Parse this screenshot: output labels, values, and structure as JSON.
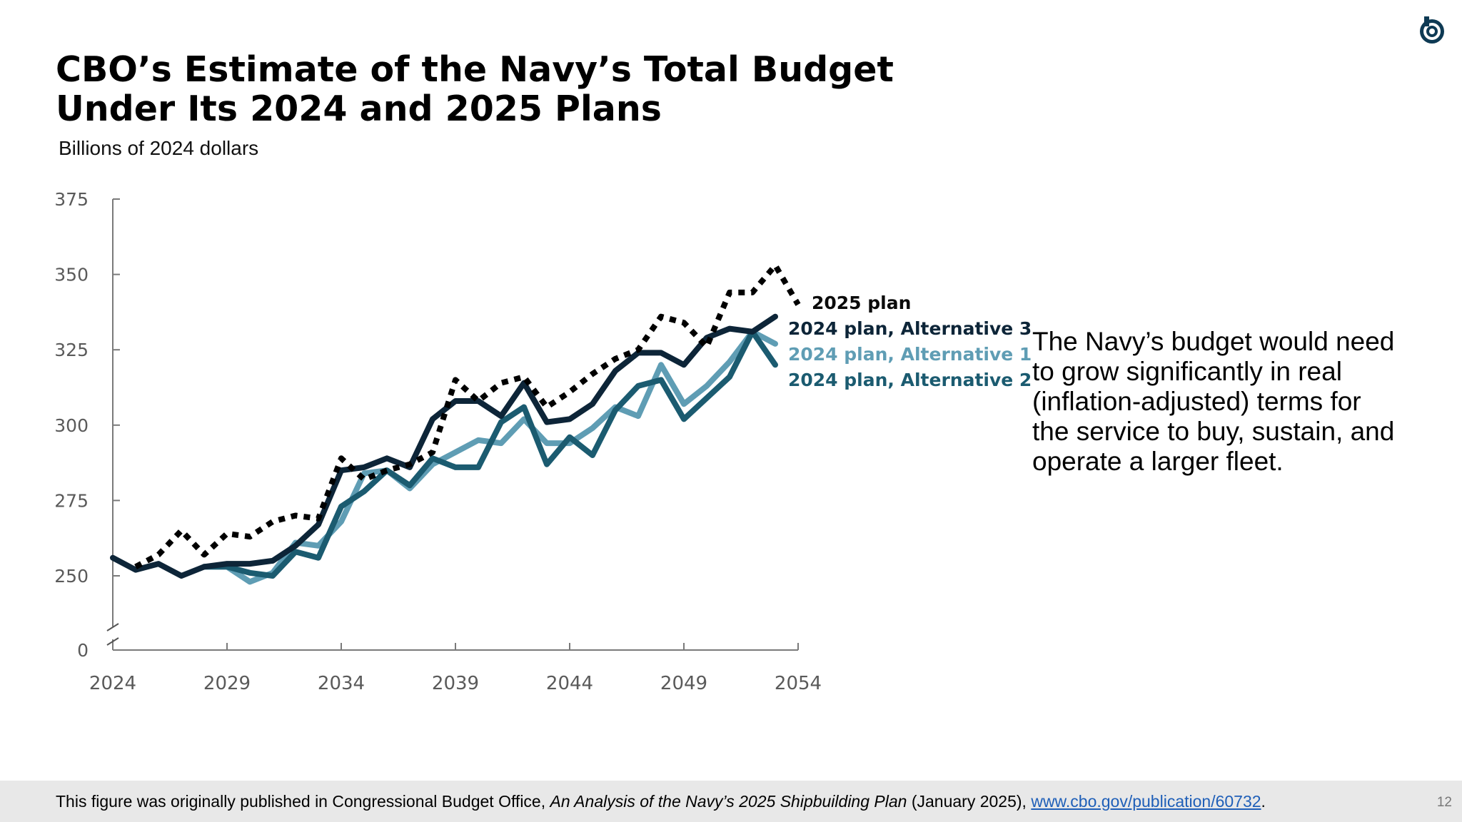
{
  "slide": {
    "title_line1": "CBO’s Estimate of the Navy’s Total Budget",
    "title_line2": "Under Its 2024 and 2025 Plans",
    "subtitle": "Billions of 2024 dollars",
    "callout": "The Navy’s budget would need to grow significantly in real (inflation-adjusted) terms for the service to buy, sustain, and operate a larger fleet.",
    "page_number": "12",
    "logo_icon": "cbo-logo-icon"
  },
  "footnote": {
    "prefix": "This figure was originally published in Congressional Budget Office, ",
    "publication": "An Analysis of the Navy’s 2025 Shipbuilding Plan",
    "date": " (January 2025), ",
    "link_text": "www.cbo.gov/publication/60732",
    "suffix": "."
  },
  "chart_data": {
    "type": "line",
    "x": [
      2024,
      2025,
      2026,
      2027,
      2028,
      2029,
      2030,
      2031,
      2032,
      2033,
      2034,
      2035,
      2036,
      2037,
      2038,
      2039,
      2040,
      2041,
      2042,
      2043,
      2044,
      2045,
      2046,
      2047,
      2048,
      2049,
      2050,
      2051,
      2052,
      2053,
      2054
    ],
    "x_ticks": [
      2024,
      2029,
      2034,
      2039,
      2044,
      2049,
      2054
    ],
    "y_ticks": [
      0,
      250,
      275,
      300,
      325,
      350,
      375
    ],
    "ylim": [
      0,
      375
    ],
    "axis_break": true,
    "series": [
      {
        "name": "2025 plan",
        "color": "#000000",
        "style": "dotted",
        "values": [
          null,
          253,
          257,
          265,
          257,
          264,
          263,
          268,
          270,
          269,
          289,
          282,
          285,
          287,
          291,
          315,
          308,
          314,
          316,
          306,
          311,
          317,
          322,
          325,
          336,
          334,
          326,
          344,
          344,
          353,
          340
        ]
      },
      {
        "name": "2024 plan, Alternative 3",
        "color": "#0d2538",
        "style": "solid",
        "values": [
          256,
          252,
          254,
          250,
          253,
          254,
          254,
          255,
          260,
          267,
          285,
          286,
          289,
          286,
          302,
          308,
          308,
          303,
          314,
          301,
          302,
          307,
          318,
          324,
          324,
          320,
          329,
          332,
          331,
          336,
          null
        ]
      },
      {
        "name": "2024 plan, Alternative 1",
        "color": "#5f9db4",
        "style": "solid",
        "values": [
          null,
          null,
          null,
          null,
          253,
          253,
          248,
          251,
          261,
          260,
          268,
          284,
          285,
          279,
          287,
          291,
          295,
          294,
          302,
          294,
          294,
          299,
          306,
          303,
          320,
          307,
          313,
          321,
          331,
          327,
          null
        ]
      },
      {
        "name": "2024 plan, Alternative 2",
        "color": "#1b5b70",
        "style": "solid",
        "values": [
          null,
          null,
          null,
          null,
          253,
          253,
          251,
          250,
          258,
          256,
          273,
          278,
          285,
          280,
          289,
          286,
          286,
          301,
          306,
          287,
          296,
          290,
          305,
          313,
          315,
          302,
          309,
          316,
          331,
          320,
          null
        ]
      }
    ],
    "legend_labels": [
      "2025 plan",
      "2024 plan, Alternative 3",
      "2024 plan, Alternative 1",
      "2024 plan, Alternative 2"
    ],
    "legend_colors": [
      "#0b0b0b",
      "#0d2538",
      "#5f9db4",
      "#1b5b70"
    ]
  }
}
